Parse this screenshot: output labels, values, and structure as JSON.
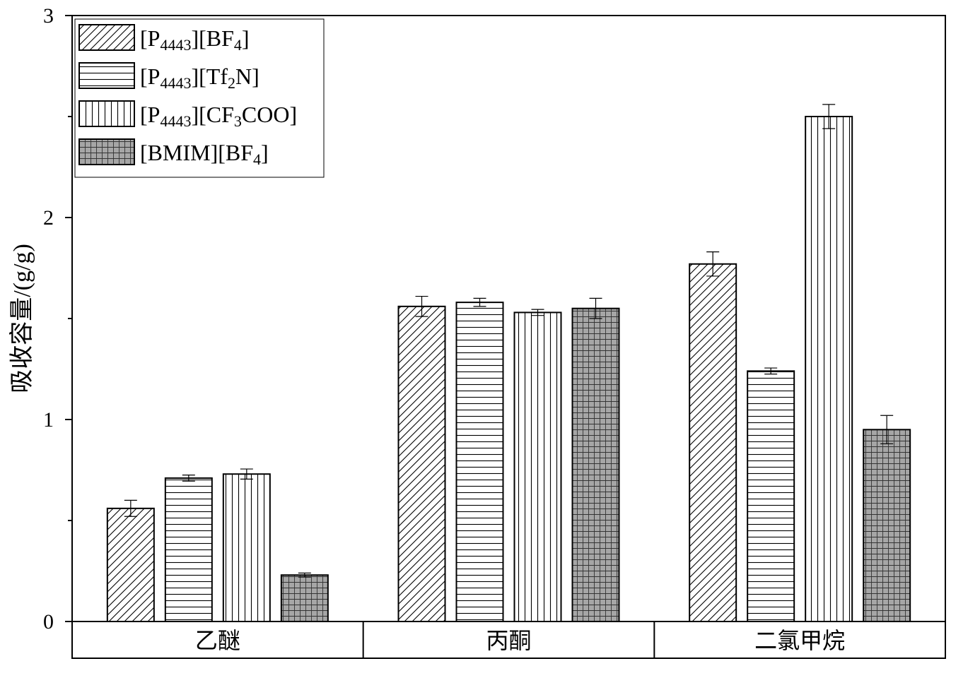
{
  "chart_data": {
    "type": "bar",
    "title": "",
    "xlabel": "",
    "ylabel": "吸收容量/(g/g)",
    "ylim": [
      0,
      3
    ],
    "yticks": [
      "0",
      "1",
      "2",
      "3"
    ],
    "categories": [
      "乙醚",
      "丙酮",
      "二氯甲烷"
    ],
    "legend_position": "top-left",
    "series": [
      {
        "name": "[P4443][BF4]",
        "label_parts": [
          [
            "[P",
            ""
          ],
          [
            "4443",
            "sub"
          ],
          [
            "][BF",
            ""
          ],
          [
            "4",
            "sub"
          ],
          [
            "]",
            ""
          ]
        ],
        "pattern": "diagonal",
        "color": "#ffffff",
        "values": [
          0.56,
          1.56,
          1.77
        ],
        "errors": [
          0.04,
          0.05,
          0.06
        ]
      },
      {
        "name": "[P4443][Tf2N]",
        "label_parts": [
          [
            "[P",
            ""
          ],
          [
            "4443",
            "sub"
          ],
          [
            "][Tf",
            ""
          ],
          [
            "2",
            "sub"
          ],
          [
            "N]",
            ""
          ]
        ],
        "pattern": "horizontal",
        "color": "#ffffff",
        "values": [
          0.71,
          1.58,
          1.24
        ],
        "errors": [
          0.015,
          0.02,
          0.015
        ]
      },
      {
        "name": "[P4443][CF3COO]",
        "label_parts": [
          [
            "[P",
            ""
          ],
          [
            "4443",
            "sub"
          ],
          [
            "][CF",
            ""
          ],
          [
            "3",
            "sub"
          ],
          [
            "COO]",
            ""
          ]
        ],
        "pattern": "vertical",
        "color": "#ffffff",
        "values": [
          0.73,
          1.53,
          2.5
        ],
        "errors": [
          0.025,
          0.015,
          0.06
        ]
      },
      {
        "name": "[BMIM][BF4]",
        "label_parts": [
          [
            "[BMIM][BF",
            ""
          ],
          [
            "4",
            "sub"
          ],
          [
            "]",
            ""
          ]
        ],
        "pattern": "grid",
        "color": "#a6a6a6",
        "values": [
          0.23,
          1.55,
          0.95
        ],
        "errors": [
          0.01,
          0.05,
          0.07
        ]
      }
    ]
  }
}
